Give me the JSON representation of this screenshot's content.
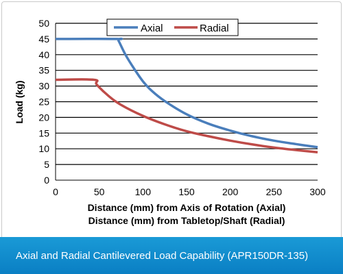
{
  "caption": "Axial and Radial Cantilevered Load Capability (APR150DR-135)",
  "chart_data": {
    "type": "line",
    "xlabel_lines": [
      "Distance (mm) from Axis of Rotation (Axial)",
      "Distance (mm) from Tabletop/Shaft (Radial)"
    ],
    "ylabel": "Load (kg)",
    "xlim": [
      0,
      300
    ],
    "ylim": [
      0,
      50
    ],
    "xticks": [
      0,
      50,
      100,
      150,
      200,
      250,
      300
    ],
    "yticks": [
      0,
      5,
      10,
      15,
      20,
      25,
      30,
      35,
      40,
      45,
      50
    ],
    "grid": "horizontal",
    "legend_position": "top",
    "series": [
      {
        "name": "Axial",
        "color": "#4a7ebb",
        "x": [
          0,
          70,
          72,
          80,
          90,
          100,
          110,
          125,
          150,
          175,
          200,
          225,
          250,
          275,
          300
        ],
        "y": [
          45,
          45,
          44.5,
          40,
          35.5,
          31.5,
          28.5,
          25.2,
          21,
          18,
          15.8,
          14,
          12.6,
          11.5,
          10.5
        ]
      },
      {
        "name": "Radial",
        "color": "#be4b48",
        "x": [
          0,
          44,
          47,
          60,
          75,
          100,
          125,
          150,
          175,
          200,
          225,
          250,
          275,
          300
        ],
        "y": [
          32,
          32,
          30.5,
          27,
          24,
          20.5,
          17.8,
          15.6,
          14,
          12.6,
          11.4,
          10.4,
          9.6,
          8.9
        ]
      }
    ]
  }
}
